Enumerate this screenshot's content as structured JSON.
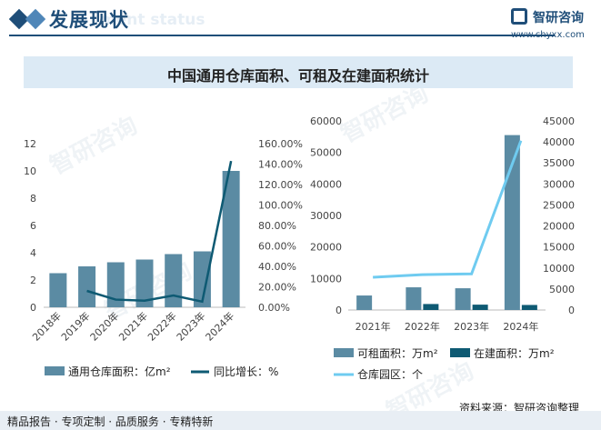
{
  "header": {
    "title": "发展现状",
    "subtitle": "ment status",
    "brand_name": "智研咨询",
    "brand_url": "www.chyxx.com"
  },
  "chart_title": "中国通用仓库面积、可租及在建面积统计",
  "watermark_text": "智研咨询",
  "footer": {
    "left_text": "精品报告 · 专项定制 · 品质服务 · 专精特新",
    "source": "资料来源：智研咨询整理"
  },
  "colors": {
    "bar": "#5b8ba3",
    "bar_dark": "#0e5a73",
    "line_dark": "#0e5a73",
    "line_light": "#6fcbf0"
  },
  "chart_data": [
    {
      "type": "bar+line",
      "categories": [
        "2018年",
        "2019年",
        "2020年",
        "2021年",
        "2022年",
        "2023年",
        "2024年"
      ],
      "series": [
        {
          "name": "通用仓库面积：亿m²",
          "kind": "bar",
          "axis": "left",
          "values": [
            2.5,
            3.0,
            3.3,
            3.5,
            3.9,
            4.1,
            10.0
          ]
        },
        {
          "name": "同比增长：%",
          "kind": "line",
          "axis": "right",
          "values": [
            null,
            16.0,
            7.5,
            6.5,
            11.5,
            5.5,
            143.0
          ]
        }
      ],
      "left_ticks": [
        "0",
        "2",
        "4",
        "6",
        "8",
        "10",
        "12"
      ],
      "left_range": [
        0,
        12
      ],
      "right_ticks": [
        "0.00%",
        "20.00%",
        "40.00%",
        "60.00%",
        "80.00%",
        "100.00%",
        "120.00%",
        "140.00%",
        "160.00%"
      ],
      "right_range": [
        0,
        160
      ]
    },
    {
      "type": "bar+line",
      "categories": [
        "2021年",
        "2022年",
        "2023年",
        "2024年"
      ],
      "series": [
        {
          "name": "可租面积：万m²",
          "kind": "bar",
          "axis": "left",
          "values": [
            4600,
            7200,
            6900,
            55500
          ]
        },
        {
          "name": "在建面积：万m²",
          "kind": "bar",
          "axis": "left",
          "values": [
            0,
            1900,
            1700,
            1600
          ]
        },
        {
          "name": "仓库园区：个",
          "kind": "line",
          "axis": "right",
          "values": [
            7800,
            8400,
            8600,
            40300
          ]
        }
      ],
      "left_ticks": [
        "0",
        "10000",
        "20000",
        "30000",
        "40000",
        "50000",
        "60000"
      ],
      "left_range": [
        0,
        60000
      ],
      "right_ticks": [
        "0",
        "5000",
        "10000",
        "15000",
        "20000",
        "25000",
        "30000",
        "35000",
        "40000",
        "45000"
      ],
      "right_range": [
        0,
        45000
      ]
    }
  ]
}
